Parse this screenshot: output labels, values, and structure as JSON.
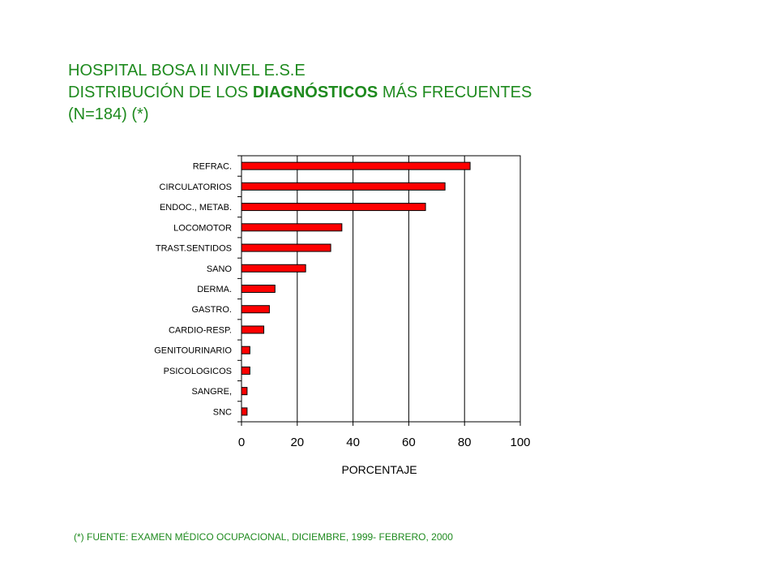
{
  "title": {
    "line1": "HOSPITAL BOSA II NIVEL E.S.E",
    "line2_prefix": "DISTRIBUCIÓN DE LOS ",
    "line2_bold": "DIAGNÓSTICOS",
    "line2_suffix": " MÁS FRECUENTES",
    "line3": "(N=184) (*)"
  },
  "footnote": "(*) FUENTE: EXAMEN MÉDICO OCUPACIONAL, DICIEMBRE, 1999- FEBRERO, 2000",
  "colors": {
    "title": "#1e8a1e",
    "bar_fill": "#ff0000",
    "bar_stroke": "#000000"
  },
  "chart_data": {
    "type": "bar",
    "orientation": "horizontal",
    "categories": [
      "REFRAC.",
      "CIRCULATORIOS",
      "ENDOC., METAB.",
      "LOCOMOTOR",
      "TRAST.SENTIDOS",
      "SANO",
      "DERMA.",
      "GASTRO.",
      "CARDIO-RESP.",
      "GENITOURINARIO",
      "PSICOLOGICOS",
      "SANGRE,",
      "SNC"
    ],
    "values": [
      82,
      73,
      66,
      36,
      32,
      23,
      12,
      10,
      8,
      3,
      3,
      2,
      2
    ],
    "xlabel": "PORCENTAJE",
    "ylabel": "",
    "xlim": [
      0,
      100
    ],
    "xticks": [
      0,
      20,
      40,
      60,
      80,
      100
    ],
    "grid": "vertical"
  }
}
